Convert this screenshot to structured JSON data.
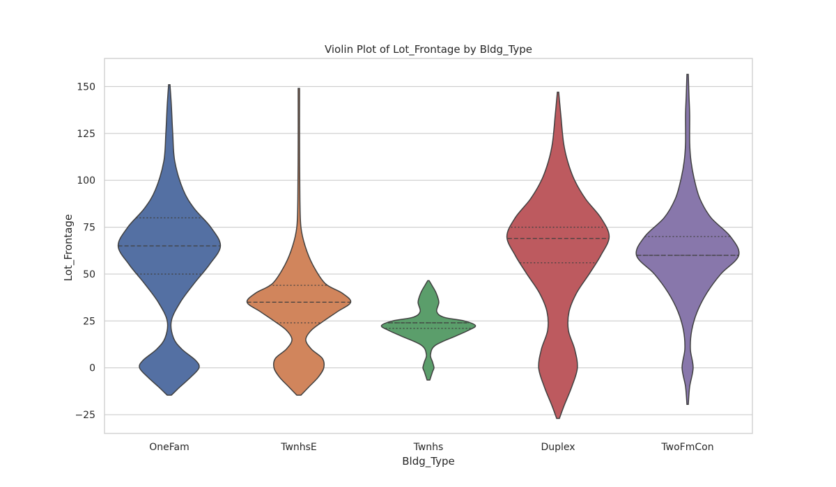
{
  "chart_data": {
    "type": "violin",
    "title": "Violin Plot of Lot_Frontage by Bldg_Type",
    "xlabel": "Bldg_Type",
    "ylabel": "Lot_Frontage",
    "ylim": [
      -35,
      165
    ],
    "yticks": [
      -25,
      0,
      25,
      50,
      75,
      100,
      125,
      150
    ],
    "grid": true,
    "categories": [
      "OneFam",
      "TwnhsE",
      "Twnhs",
      "Duplex",
      "TwoFmCon"
    ],
    "colors": [
      "#5470a3",
      "#d1855c",
      "#5b9e6b",
      "#bd5a5f",
      "#8877ab"
    ],
    "violins": [
      {
        "category": "OneFam",
        "q1": 50,
        "median": 65,
        "q3": 80,
        "profile": [
          [
            -14.6,
            3
          ],
          [
            -10,
            16
          ],
          [
            -5,
            31
          ],
          [
            0,
            43
          ],
          [
            4,
            38
          ],
          [
            10,
            18
          ],
          [
            16,
            6
          ],
          [
            25,
            3
          ],
          [
            35,
            16
          ],
          [
            45,
            36
          ],
          [
            55,
            58
          ],
          [
            65,
            74
          ],
          [
            75,
            60
          ],
          [
            85,
            36
          ],
          [
            95,
            20
          ],
          [
            110,
            8
          ],
          [
            125,
            5
          ],
          [
            140,
            3
          ],
          [
            151,
            1
          ]
        ]
      },
      {
        "category": "TwnhsE",
        "q1": 24,
        "median": 35,
        "q3": 44,
        "profile": [
          [
            -14.6,
            3
          ],
          [
            -10,
            15
          ],
          [
            -5,
            28
          ],
          [
            0,
            36
          ],
          [
            5,
            34
          ],
          [
            10,
            18
          ],
          [
            15,
            10
          ],
          [
            20,
            18
          ],
          [
            25,
            36
          ],
          [
            30,
            56
          ],
          [
            35,
            75
          ],
          [
            40,
            62
          ],
          [
            45,
            38
          ],
          [
            55,
            20
          ],
          [
            65,
            9
          ],
          [
            75,
            3
          ],
          [
            90,
            1.5
          ],
          [
            120,
            1
          ],
          [
            149,
            1
          ]
        ]
      },
      {
        "category": "Twnhs",
        "q1": 21,
        "median": 24,
        "q3": 24,
        "profile": [
          [
            -6.5,
            2
          ],
          [
            -2,
            6
          ],
          [
            0,
            8
          ],
          [
            3,
            6
          ],
          [
            7,
            3
          ],
          [
            12,
            10
          ],
          [
            17,
            40
          ],
          [
            20,
            58
          ],
          [
            22.5,
            68
          ],
          [
            25,
            52
          ],
          [
            27,
            22
          ],
          [
            30,
            12
          ],
          [
            35,
            15
          ],
          [
            40,
            11
          ],
          [
            44,
            5
          ],
          [
            46.5,
            1
          ]
        ]
      },
      {
        "category": "Duplex",
        "q1": 56,
        "median": 69,
        "q3": 75,
        "profile": [
          [
            -27,
            2
          ],
          [
            -20,
            9
          ],
          [
            -10,
            20
          ],
          [
            0,
            28
          ],
          [
            10,
            24
          ],
          [
            20,
            15
          ],
          [
            30,
            16
          ],
          [
            40,
            27
          ],
          [
            50,
            45
          ],
          [
            60,
            62
          ],
          [
            70,
            74
          ],
          [
            80,
            62
          ],
          [
            90,
            40
          ],
          [
            100,
            24
          ],
          [
            110,
            14
          ],
          [
            120,
            8
          ],
          [
            135,
            4
          ],
          [
            147,
            1
          ]
        ]
      },
      {
        "category": "TwoFmCon",
        "q1": 60,
        "median": 60,
        "q3": 70,
        "profile": [
          [
            -19.5,
            1
          ],
          [
            -10,
            3
          ],
          [
            0,
            8
          ],
          [
            10,
            4
          ],
          [
            20,
            6
          ],
          [
            30,
            14
          ],
          [
            40,
            28
          ],
          [
            50,
            48
          ],
          [
            60,
            74
          ],
          [
            70,
            62
          ],
          [
            80,
            34
          ],
          [
            90,
            18
          ],
          [
            100,
            10
          ],
          [
            110,
            5
          ],
          [
            120,
            3
          ],
          [
            135,
            3
          ],
          [
            145,
            2
          ],
          [
            156.5,
            1
          ]
        ]
      }
    ]
  }
}
